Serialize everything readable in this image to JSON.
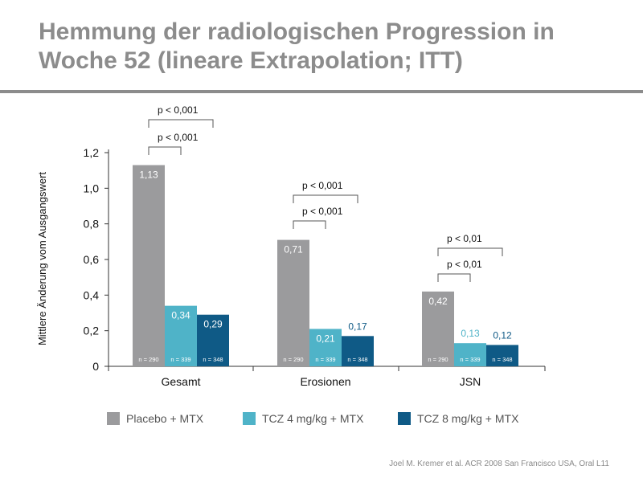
{
  "page": {
    "title_line1": "Hemmung der radiologischen Progression in",
    "title_line2": "Woche 52 (lineare Extrapolation; ITT)",
    "footnote": "Joel M. Kremer et al. ACR 2008 San Francisco USA, Oral L11"
  },
  "colors": {
    "placebo": "#9b9b9d",
    "tcz4": "#4fb3c8",
    "tcz8": "#0f5a86",
    "title": "#8c8c8c",
    "axis": "#333333"
  },
  "chart_data": {
    "type": "bar",
    "title": "",
    "xlabel": "",
    "ylabel": "Mittlere Änderung vom Ausgangswert",
    "ylim": [
      0,
      1.2
    ],
    "yticks": [
      "0",
      "0,2",
      "0,4",
      "0,6",
      "0,8",
      "1,0",
      "1,2"
    ],
    "categories": [
      "Gesamt",
      "Erosionen",
      "JSN"
    ],
    "series": [
      {
        "name": "Placebo + MTX",
        "color_key": "placebo",
        "values": [
          1.13,
          0.71,
          0.42
        ],
        "labels": [
          "1,13",
          "0,71",
          "0,42"
        ],
        "n": [
          "n = 290",
          "n = 290",
          "n = 290"
        ]
      },
      {
        "name": "TCZ 4 mg/kg + MTX",
        "color_key": "tcz4",
        "values": [
          0.34,
          0.21,
          0.13
        ],
        "labels": [
          "0,34",
          "0,21",
          "0,13"
        ],
        "n": [
          "n = 339",
          "n = 339",
          "n = 339"
        ]
      },
      {
        "name": "TCZ 8 mg/kg + MTX",
        "color_key": "tcz8",
        "values": [
          0.29,
          0.17,
          0.12
        ],
        "labels": [
          "0,29",
          "0,17",
          "0,12"
        ],
        "n": [
          "n = 348",
          "n = 348",
          "n = 348"
        ]
      }
    ],
    "annotations": [
      {
        "category": "Gesamt",
        "compare": "TCZ 4 mg/kg + MTX",
        "text": "p < 0,001"
      },
      {
        "category": "Gesamt",
        "compare": "TCZ 8 mg/kg + MTX",
        "text": "p < 0,001"
      },
      {
        "category": "Erosionen",
        "compare": "TCZ 4 mg/kg + MTX",
        "text": "p < 0,001"
      },
      {
        "category": "Erosionen",
        "compare": "TCZ 8 mg/kg + MTX",
        "text": "p < 0,001"
      },
      {
        "category": "JSN",
        "compare": "TCZ 4 mg/kg + MTX",
        "text": "p < 0,01"
      },
      {
        "category": "JSN",
        "compare": "TCZ 8 mg/kg + MTX",
        "text": "p < 0,01"
      }
    ],
    "legend_position": "bottom"
  }
}
